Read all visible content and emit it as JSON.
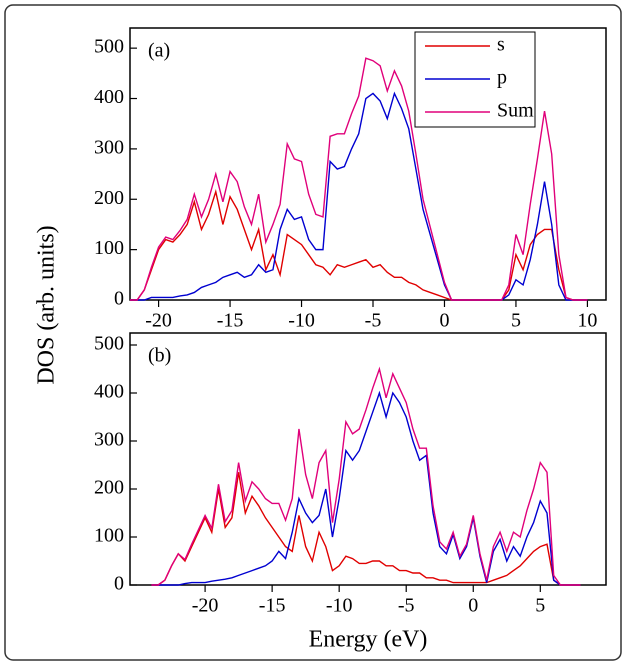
{
  "chart_data": [
    {
      "type": "line",
      "annotation": "(a)",
      "ylabel": "DOS (arb. units)",
      "legend": "top-right",
      "xlim": [
        -22,
        11.3
      ],
      "ylim": [
        0,
        540
      ],
      "xticks": [
        -20,
        -15,
        -10,
        -5,
        0,
        5,
        10
      ],
      "yticks": [
        0,
        100,
        200,
        300,
        400,
        500
      ],
      "x": [
        -22,
        -21.5,
        -21,
        -20.5,
        -20,
        -19.5,
        -19,
        -18.5,
        -18,
        -17.5,
        -17,
        -16.5,
        -16,
        -15.5,
        -15,
        -14.5,
        -14,
        -13.5,
        -13,
        -12.5,
        -12,
        -11.5,
        -11,
        -10.5,
        -10,
        -9.5,
        -9,
        -8.5,
        -8,
        -7.5,
        -7,
        -6.5,
        -6,
        -5.5,
        -5,
        -4.5,
        -4,
        -3.5,
        -3,
        -2.5,
        -2,
        -1.5,
        -1,
        -0.5,
        0,
        0.5,
        1,
        1.5,
        2,
        2.5,
        3,
        3.5,
        4,
        4.5,
        5,
        5.5,
        6,
        6.5,
        7,
        7.5,
        8,
        8.5,
        9,
        9.5,
        10
      ],
      "series": [
        {
          "name": "s",
          "color": "#e00000",
          "values": [
            0,
            0,
            20,
            60,
            100,
            120,
            115,
            130,
            150,
            195,
            140,
            170,
            215,
            150,
            205,
            180,
            140,
            100,
            140,
            60,
            90,
            50,
            130,
            120,
            110,
            90,
            70,
            65,
            50,
            70,
            65,
            70,
            75,
            80,
            65,
            70,
            55,
            45,
            45,
            35,
            30,
            20,
            15,
            10,
            5,
            0,
            0,
            0,
            0,
            0,
            0,
            0,
            0,
            20,
            90,
            60,
            110,
            130,
            140,
            140,
            60,
            5,
            0,
            0,
            0
          ]
        },
        {
          "name": "p",
          "color": "#0000d0",
          "values": [
            0,
            0,
            0,
            5,
            5,
            5,
            5,
            8,
            10,
            15,
            25,
            30,
            35,
            45,
            50,
            55,
            45,
            50,
            70,
            55,
            60,
            140,
            180,
            160,
            165,
            120,
            100,
            100,
            275,
            260,
            265,
            300,
            330,
            400,
            410,
            395,
            360,
            410,
            380,
            340,
            260,
            180,
            130,
            80,
            30,
            0,
            0,
            0,
            0,
            0,
            0,
            0,
            0,
            10,
            40,
            30,
            80,
            150,
            235,
            150,
            30,
            0,
            0,
            0,
            0
          ]
        },
        {
          "name": "Sum",
          "color": "#e0007a",
          "values": [
            0,
            0,
            20,
            65,
            105,
            125,
            120,
            138,
            160,
            210,
            165,
            200,
            250,
            195,
            255,
            235,
            185,
            150,
            210,
            115,
            150,
            190,
            310,
            280,
            275,
            210,
            170,
            165,
            325,
            330,
            330,
            370,
            405,
            480,
            475,
            465,
            415,
            455,
            425,
            375,
            290,
            200,
            145,
            90,
            35,
            0,
            0,
            0,
            0,
            0,
            0,
            0,
            0,
            30,
            130,
            90,
            190,
            280,
            375,
            290,
            90,
            5,
            0,
            0,
            0
          ]
        }
      ]
    },
    {
      "type": "line",
      "annotation": "(b)",
      "xlabel": "Energy (eV)",
      "xlim": [
        -25.6,
        9.9
      ],
      "ylim": [
        0,
        525
      ],
      "xticks": [
        -20,
        -15,
        -10,
        -5,
        0,
        5
      ],
      "yticks": [
        0,
        100,
        200,
        300,
        400,
        500
      ],
      "x": [
        -24,
        -23.5,
        -23,
        -22.5,
        -22,
        -21.5,
        -21,
        -20.5,
        -20,
        -19.5,
        -19,
        -18.5,
        -18,
        -17.5,
        -17,
        -16.5,
        -16,
        -15.5,
        -15,
        -14.5,
        -14,
        -13.5,
        -13,
        -12.5,
        -12,
        -11.5,
        -11,
        -10.5,
        -10,
        -9.5,
        -9,
        -8.5,
        -8,
        -7.5,
        -7,
        -6.5,
        -6,
        -5.5,
        -5,
        -4.5,
        -4,
        -3.5,
        -3,
        -2.5,
        -2,
        -1.5,
        -1,
        -0.5,
        0,
        0.5,
        1,
        1.5,
        2,
        2.5,
        3,
        3.5,
        4,
        4.5,
        5,
        5.5,
        6,
        6.5,
        7,
        7.5,
        8
      ],
      "series": [
        {
          "color": "#e00000",
          "values": [
            0,
            0,
            10,
            40,
            65,
            50,
            80,
            110,
            140,
            110,
            200,
            120,
            140,
            235,
            150,
            185,
            165,
            140,
            120,
            100,
            80,
            70,
            145,
            80,
            50,
            110,
            80,
            30,
            40,
            60,
            55,
            45,
            45,
            50,
            50,
            40,
            40,
            30,
            30,
            25,
            25,
            15,
            15,
            10,
            10,
            5,
            5,
            5,
            5,
            5,
            5,
            10,
            15,
            20,
            30,
            40,
            55,
            70,
            80,
            85,
            10,
            0,
            0,
            0,
            0
          ]
        },
        {
          "color": "#0000d0",
          "values": [
            0,
            0,
            0,
            0,
            0,
            3,
            5,
            5,
            5,
            8,
            10,
            12,
            15,
            20,
            25,
            30,
            35,
            40,
            50,
            70,
            55,
            110,
            180,
            150,
            130,
            145,
            200,
            100,
            180,
            280,
            260,
            280,
            320,
            360,
            400,
            350,
            400,
            380,
            350,
            300,
            260,
            270,
            150,
            80,
            65,
            105,
            55,
            80,
            140,
            60,
            5,
            70,
            95,
            50,
            80,
            60,
            100,
            130,
            175,
            150,
            10,
            0,
            0,
            0,
            0
          ]
        },
        {
          "color": "#e0007a",
          "values": [
            0,
            0,
            10,
            40,
            65,
            53,
            85,
            115,
            145,
            118,
            210,
            132,
            155,
            255,
            175,
            215,
            200,
            180,
            170,
            170,
            135,
            180,
            325,
            230,
            180,
            255,
            280,
            130,
            220,
            340,
            315,
            325,
            365,
            410,
            450,
            390,
            440,
            410,
            380,
            325,
            285,
            285,
            165,
            90,
            75,
            110,
            60,
            85,
            145,
            65,
            10,
            80,
            110,
            70,
            110,
            100,
            155,
            200,
            255,
            235,
            20,
            0,
            0,
            0,
            0
          ]
        }
      ]
    }
  ]
}
